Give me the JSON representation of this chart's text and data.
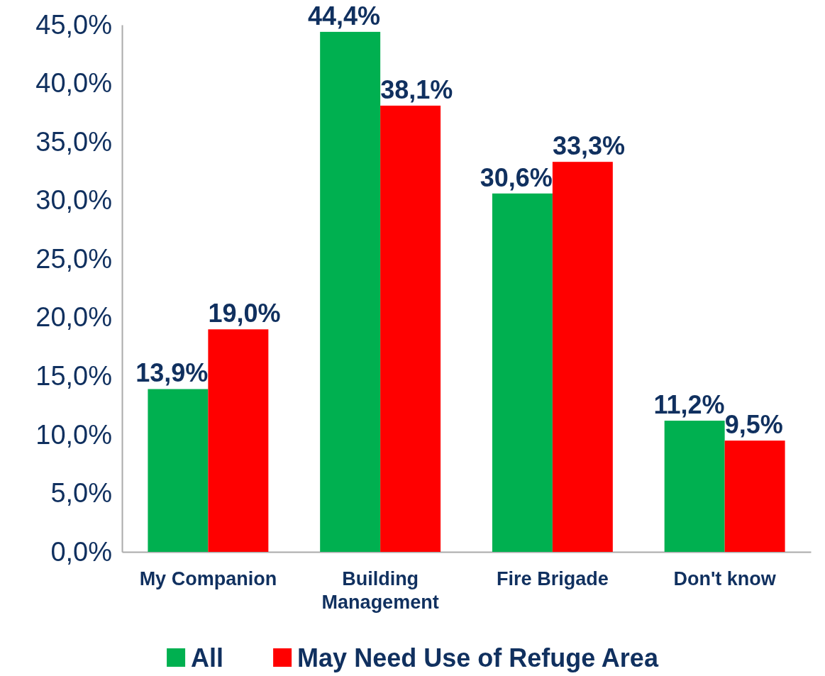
{
  "chart_data": {
    "type": "bar",
    "categories": [
      "My Companion",
      "Building Management",
      "Fire Brigade",
      "Don't know"
    ],
    "series": [
      {
        "name": "All",
        "color": "#00b050",
        "values": [
          13.9,
          44.4,
          30.6,
          11.2
        ],
        "value_labels": [
          "13,9%",
          "44,4%",
          "30,6%",
          "11,2%"
        ]
      },
      {
        "name": "May Need Use of Refuge Area",
        "color": "#ff0000",
        "values": [
          19.0,
          38.1,
          33.3,
          9.5
        ],
        "value_labels": [
          "19,0%",
          "38,1%",
          "33,3%",
          "9,5%"
        ]
      }
    ],
    "ylim": [
      0,
      45
    ],
    "yticks": [
      {
        "value": 0,
        "label": "0,0%"
      },
      {
        "value": 5,
        "label": "5,0%"
      },
      {
        "value": 10,
        "label": "10,0%"
      },
      {
        "value": 15,
        "label": "15,0%"
      },
      {
        "value": 20,
        "label": "20,0%"
      },
      {
        "value": 25,
        "label": "25,0%"
      },
      {
        "value": 30,
        "label": "30,0%"
      },
      {
        "value": 35,
        "label": "35,0%"
      },
      {
        "value": 40,
        "label": "40,0%"
      },
      {
        "value": 45,
        "label": "45,0%"
      }
    ],
    "grid": false,
    "legend": "bottom"
  }
}
